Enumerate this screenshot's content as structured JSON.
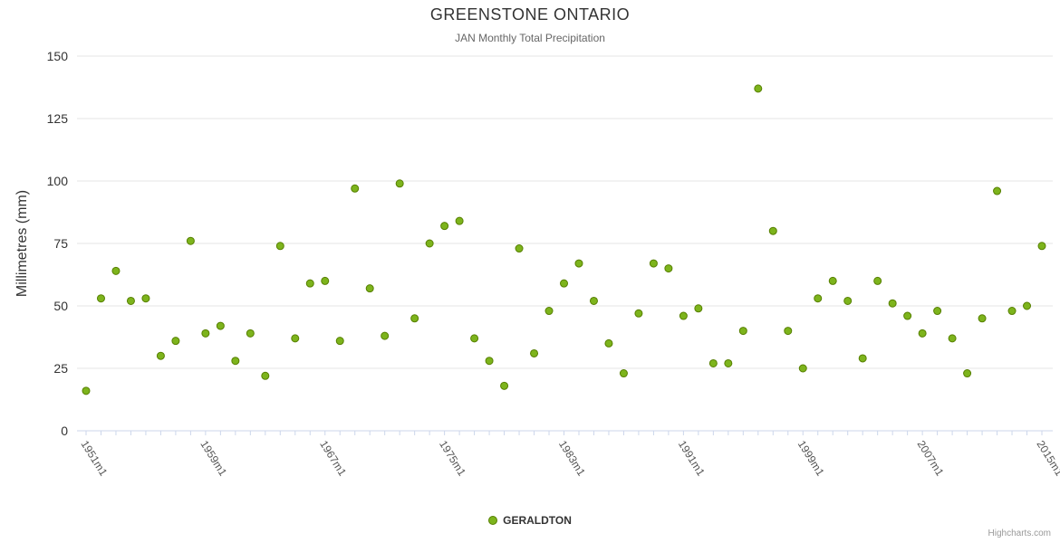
{
  "chart": {
    "title": "GREENSTONE ONTARIO",
    "subtitle": "JAN Monthly Total Precipitation",
    "y_axis_title": "Millimetres (mm)",
    "legend_label": "GERALDTON",
    "credits": "Highcharts.com",
    "colors": {
      "point_fill": "#7db41c",
      "point_stroke": "#567f00",
      "gridline": "#e6e6e6",
      "axis_line": "#ccd6eb",
      "tick": "#ccd6eb",
      "y_label": "#333333",
      "x_label": "#555555"
    }
  },
  "chart_data": {
    "type": "scatter",
    "title": "GREENSTONE ONTARIO",
    "subtitle": "JAN Monthly Total Precipitation",
    "xlabel": "",
    "ylabel": "Millimetres (mm)",
    "legend_position": "bottom-center",
    "grid": "horizontal",
    "ylim": [
      0,
      150
    ],
    "y_ticks": [
      0,
      25,
      50,
      75,
      100,
      125,
      150
    ],
    "x_tick_labels": [
      "1951m1",
      "1959m1",
      "1967m1",
      "1975m1",
      "1983m1",
      "1991m1",
      "1999m1",
      "2007m1",
      "2015m1"
    ],
    "series": [
      {
        "name": "GERALDTON",
        "x": [
          1951,
          1952,
          1953,
          1954,
          1955,
          1956,
          1957,
          1958,
          1959,
          1960,
          1961,
          1962,
          1963,
          1964,
          1965,
          1966,
          1967,
          1968,
          1969,
          1970,
          1971,
          1972,
          1973,
          1974,
          1975,
          1976,
          1977,
          1978,
          1979,
          1980,
          1981,
          1982,
          1983,
          1984,
          1985,
          1986,
          1987,
          1988,
          1989,
          1990,
          1991,
          1992,
          1993,
          1994,
          1995,
          1996,
          1997,
          1998,
          1999,
          2000,
          2001,
          2002,
          2003,
          2004,
          2005,
          2006,
          2007,
          2008,
          2009,
          2010,
          2011,
          2012,
          2013,
          2014,
          2015
        ],
        "values": [
          16,
          53,
          64,
          52,
          53,
          30,
          36,
          76,
          39,
          42,
          28,
          39,
          22,
          74,
          37,
          59,
          60,
          36,
          97,
          57,
          38,
          99,
          45,
          75,
          82,
          84,
          37,
          28,
          18,
          73,
          31,
          48,
          59,
          67,
          52,
          35,
          23,
          47,
          67,
          65,
          46,
          49,
          27,
          27,
          40,
          137,
          80,
          40,
          25,
          53,
          60,
          52,
          29,
          60,
          51,
          46,
          39,
          48,
          37,
          23,
          45,
          96,
          48,
          50,
          74
        ]
      }
    ]
  }
}
